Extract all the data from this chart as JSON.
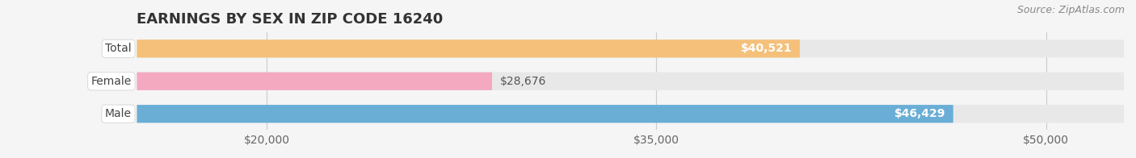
{
  "title": "EARNINGS BY SEX IN ZIP CODE 16240",
  "source": "Source: ZipAtlas.com",
  "categories": [
    "Male",
    "Female",
    "Total"
  ],
  "values": [
    46429,
    28676,
    40521
  ],
  "bar_colors": [
    "#6aaed6",
    "#f4a9c0",
    "#f5c07a"
  ],
  "label_colors": [
    "#ffffff",
    "#555555",
    "#555555"
  ],
  "value_labels": [
    "$46,429",
    "$28,676",
    "$40,521"
  ],
  "value_label_inside": [
    true,
    false,
    true
  ],
  "xlim": [
    15000,
    53000
  ],
  "xticks": [
    20000,
    35000,
    50000
  ],
  "xtick_labels": [
    "$20,000",
    "$35,000",
    "$50,000"
  ],
  "background_color": "#f5f5f5",
  "bar_background_color": "#e8e8e8",
  "title_fontsize": 13,
  "label_fontsize": 10,
  "value_fontsize": 10,
  "source_fontsize": 9,
  "bar_height": 0.55,
  "label_bg_color": "#ffffff"
}
